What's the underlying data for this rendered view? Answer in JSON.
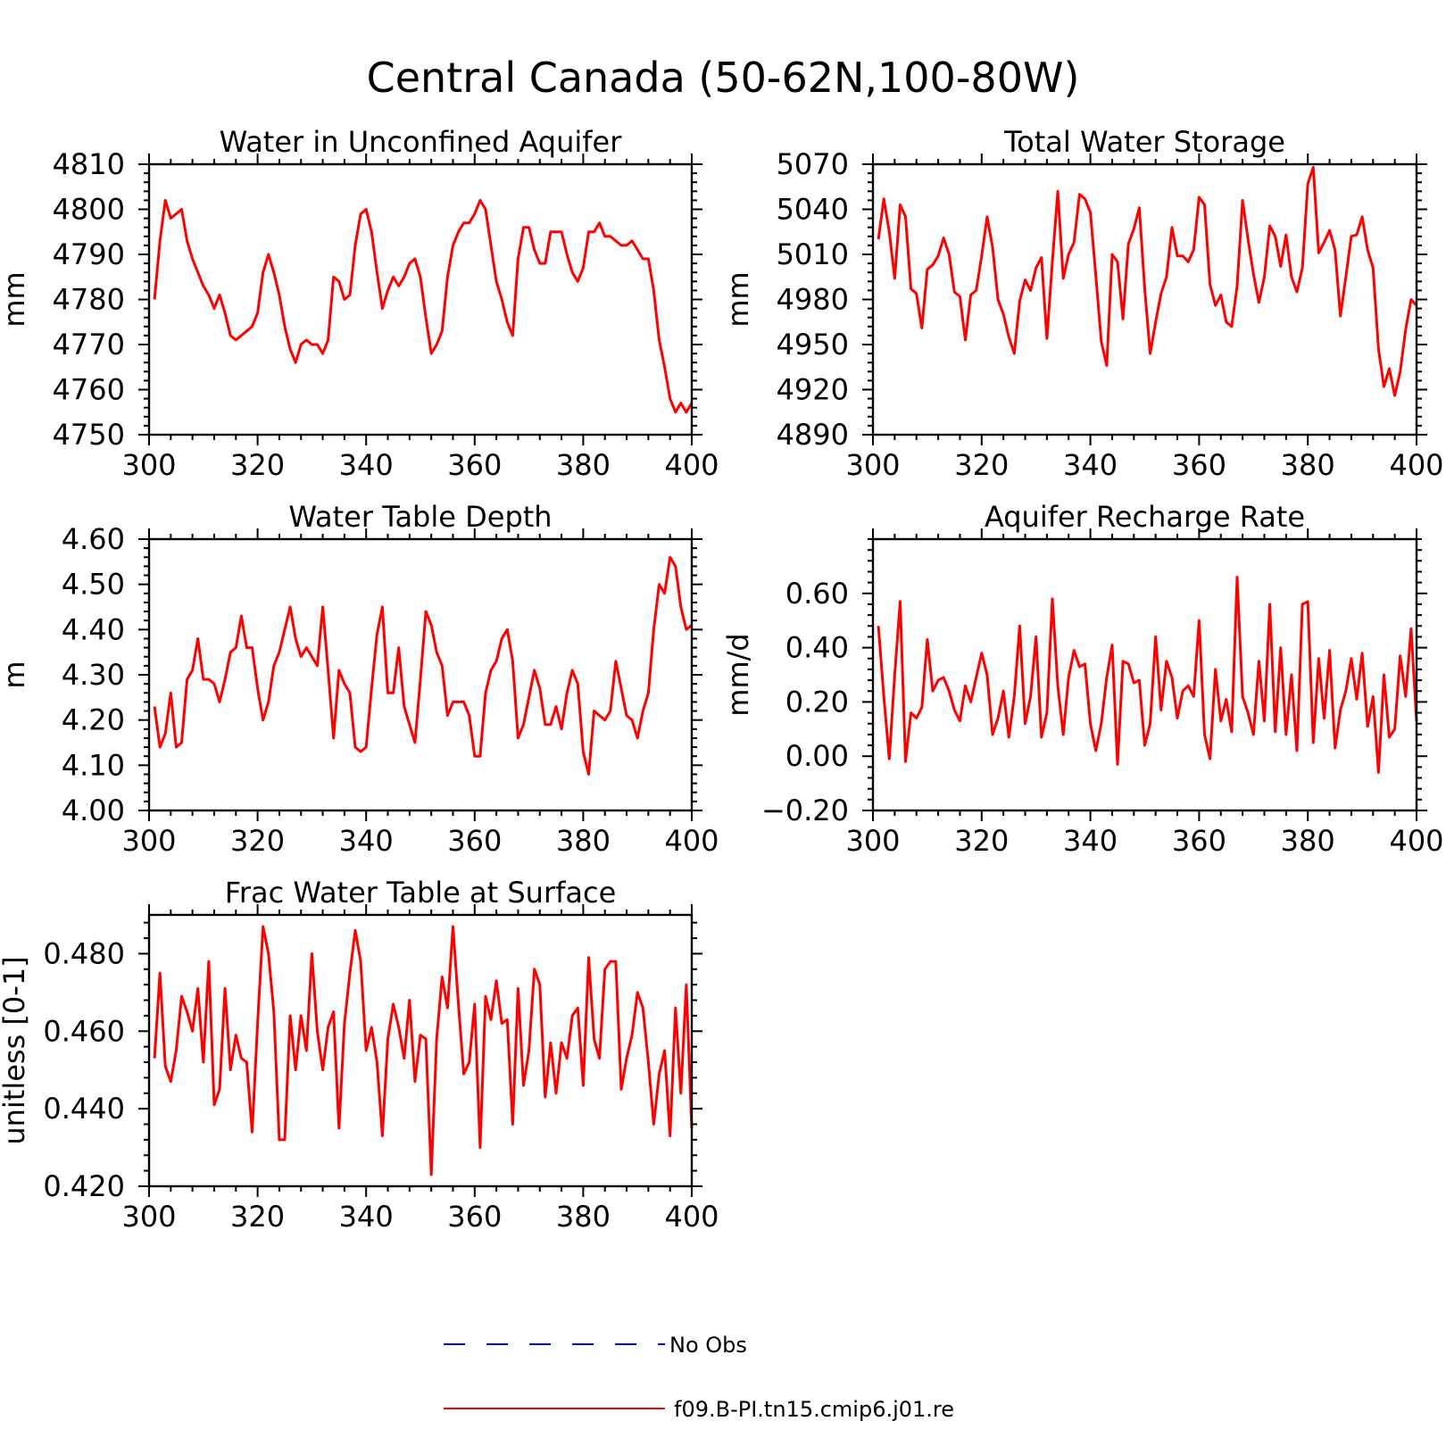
{
  "figure_title": "Central Canada (50-62N,100-80W)",
  "legend": {
    "items": [
      {
        "label": "No Obs",
        "color": "#0000ff",
        "style": "dashed"
      },
      {
        "label": "f09.B-PI.tn15.cmip6.j01.re",
        "color": "#ff0000",
        "style": "solid"
      }
    ]
  },
  "colors": {
    "series": "#ff0000",
    "no_obs": "#0000ff",
    "axes": "#000000"
  },
  "chart_data": [
    {
      "type": "line",
      "title": "Water in Unconfined Aquifer",
      "ylabel": "mm",
      "xlim": [
        300,
        400
      ],
      "ylim": [
        4750,
        4810
      ],
      "xticks": [
        300,
        320,
        340,
        360,
        380,
        400
      ],
      "xtick_labels": [
        "300",
        "320",
        "340",
        "360",
        "380",
        "400"
      ],
      "yticks": [
        4750,
        4760,
        4770,
        4780,
        4790,
        4800,
        4810
      ],
      "ytick_labels": [
        "4750",
        "4760",
        "4770",
        "4780",
        "4790",
        "4800",
        "4810"
      ],
      "x_start": 301,
      "series": [
        {
          "values": [
            4780,
            4793,
            4802,
            4798,
            4799,
            4800,
            4793,
            4789,
            4786,
            4783,
            4781,
            4778,
            4781,
            4777,
            4772,
            4771,
            4772,
            4773,
            4774,
            4777,
            4786,
            4790,
            4786,
            4781,
            4774,
            4769,
            4766,
            4770,
            4771,
            4770,
            4770,
            4768,
            4771,
            4785,
            4784,
            4780,
            4781,
            4792,
            4799,
            4800,
            4795,
            4786,
            4778,
            4782,
            4785,
            4783,
            4785,
            4788,
            4789,
            4785,
            4776,
            4768,
            4770,
            4773,
            4785,
            4792,
            4795,
            4797,
            4797,
            4799,
            4802,
            4800,
            4792,
            4784,
            4780,
            4775,
            4772,
            4789,
            4796,
            4796,
            4791,
            4788,
            4788,
            4795,
            4795,
            4795,
            4790,
            4786,
            4784,
            4787,
            4795,
            4795,
            4797,
            4794,
            4794,
            4793,
            4792,
            4792,
            4793,
            4791,
            4789,
            4789,
            4782,
            4771,
            4765,
            4758,
            4755,
            4757,
            4755,
            4757
          ]
        }
      ]
    },
    {
      "type": "line",
      "title": "Total Water Storage",
      "ylabel": "mm",
      "xlim": [
        300,
        400
      ],
      "ylim": [
        4890,
        5070
      ],
      "xticks": [
        300,
        320,
        340,
        360,
        380,
        400
      ],
      "xtick_labels": [
        "300",
        "320",
        "340",
        "360",
        "380",
        "400"
      ],
      "yticks": [
        4890,
        4920,
        4950,
        4980,
        5010,
        5040,
        5070
      ],
      "ytick_labels": [
        "4890",
        "4920",
        "4950",
        "4980",
        "5010",
        "5040",
        "5070"
      ],
      "x_start": 301,
      "series": [
        {
          "values": [
            5020,
            5047,
            5025,
            4994,
            5043,
            5035,
            4987,
            4984,
            4961,
            5000,
            5003,
            5009,
            5021,
            5010,
            4985,
            4982,
            4953,
            4983,
            4986,
            5009,
            5035,
            5015,
            4980,
            4970,
            4955,
            4944,
            4979,
            4993,
            4986,
            5001,
            5008,
            4954,
            5005,
            5052,
            4994,
            5010,
            5018,
            5050,
            5047,
            5038,
            4996,
            4952,
            4936,
            5010,
            5005,
            4967,
            5017,
            5027,
            5041,
            4987,
            4944,
            4965,
            4984,
            4995,
            5028,
            5009,
            5009,
            5005,
            5013,
            5048,
            5043,
            4990,
            4976,
            4983,
            4965,
            4962,
            4989,
            5046,
            5020,
            4997,
            4978,
            4995,
            5029,
            5022,
            5002,
            5023,
            4995,
            4985,
            5001,
            5057,
            5068,
            5011,
            5018,
            5026,
            5013,
            4969,
            4995,
            5022,
            5023,
            5035,
            5013,
            5001,
            4947,
            4922,
            4934,
            4916,
            4932,
            4960,
            4980,
            4976
          ]
        }
      ]
    },
    {
      "type": "line",
      "title": "Water Table Depth",
      "ylabel": "m",
      "xlim": [
        300,
        400
      ],
      "ylim": [
        4.0,
        4.6
      ],
      "xticks": [
        300,
        320,
        340,
        360,
        380,
        400
      ],
      "xtick_labels": [
        "300",
        "320",
        "340",
        "360",
        "380",
        "400"
      ],
      "yticks": [
        4.0,
        4.1,
        4.2,
        4.3,
        4.4,
        4.5,
        4.6
      ],
      "ytick_labels": [
        "4.00",
        "4.10",
        "4.20",
        "4.30",
        "4.40",
        "4.50",
        "4.60"
      ],
      "x_start": 301,
      "series": [
        {
          "values": [
            4.23,
            4.14,
            4.17,
            4.26,
            4.14,
            4.15,
            4.29,
            4.31,
            4.38,
            4.29,
            4.29,
            4.28,
            4.24,
            4.29,
            4.35,
            4.36,
            4.43,
            4.36,
            4.36,
            4.27,
            4.2,
            4.24,
            4.32,
            4.35,
            4.4,
            4.45,
            4.38,
            4.34,
            4.36,
            4.34,
            4.32,
            4.45,
            4.31,
            4.16,
            4.31,
            4.28,
            4.26,
            4.14,
            4.13,
            4.14,
            4.27,
            4.39,
            4.45,
            4.26,
            4.26,
            4.36,
            4.23,
            4.19,
            4.15,
            4.29,
            4.44,
            4.41,
            4.35,
            4.32,
            4.21,
            4.24,
            4.24,
            4.24,
            4.21,
            4.12,
            4.12,
            4.26,
            4.31,
            4.33,
            4.38,
            4.4,
            4.33,
            4.16,
            4.19,
            4.25,
            4.31,
            4.27,
            4.19,
            4.19,
            4.23,
            4.18,
            4.26,
            4.31,
            4.28,
            4.13,
            4.08,
            4.22,
            4.21,
            4.2,
            4.22,
            4.33,
            4.27,
            4.21,
            4.2,
            4.16,
            4.22,
            4.26,
            4.4,
            4.5,
            4.48,
            4.56,
            4.54,
            4.45,
            4.4,
            4.41
          ]
        }
      ]
    },
    {
      "type": "line",
      "title": "Aquifer Recharge Rate",
      "ylabel": "mm/d",
      "xlim": [
        300,
        400
      ],
      "ylim": [
        -0.2,
        0.8
      ],
      "xticks": [
        300,
        320,
        340,
        360,
        380,
        400
      ],
      "xtick_labels": [
        "300",
        "320",
        "340",
        "360",
        "380",
        "400"
      ],
      "yticks": [
        -0.2,
        0.0,
        0.2,
        0.4,
        0.6
      ],
      "ytick_labels": [
        "-0.20",
        "0.00",
        "0.20",
        "0.40",
        "0.60"
      ],
      "x_start": 301,
      "series": [
        {
          "values": [
            0.48,
            0.22,
            -0.01,
            0.3,
            0.57,
            -0.02,
            0.16,
            0.14,
            0.18,
            0.43,
            0.24,
            0.28,
            0.29,
            0.24,
            0.17,
            0.13,
            0.26,
            0.2,
            0.29,
            0.38,
            0.3,
            0.08,
            0.14,
            0.24,
            0.07,
            0.22,
            0.48,
            0.12,
            0.22,
            0.44,
            0.07,
            0.16,
            0.58,
            0.26,
            0.08,
            0.29,
            0.39,
            0.33,
            0.34,
            0.12,
            0.02,
            0.12,
            0.29,
            0.41,
            -0.03,
            0.35,
            0.34,
            0.27,
            0.28,
            0.04,
            0.12,
            0.44,
            0.17,
            0.35,
            0.29,
            0.14,
            0.24,
            0.26,
            0.22,
            0.5,
            0.08,
            -0.01,
            0.32,
            0.13,
            0.21,
            0.09,
            0.66,
            0.22,
            0.16,
            0.08,
            0.35,
            0.13,
            0.56,
            0.09,
            0.4,
            0.08,
            0.3,
            0.02,
            0.56,
            0.57,
            0.05,
            0.36,
            0.14,
            0.39,
            0.03,
            0.17,
            0.24,
            0.36,
            0.21,
            0.38,
            0.11,
            0.22,
            -0.06,
            0.3,
            0.07,
            0.1,
            0.37,
            0.22,
            0.47,
            0.13
          ]
        }
      ]
    },
    {
      "type": "line",
      "title": "Frac Water Table at Surface",
      "ylabel": "unitless [0-1]",
      "xlim": [
        300,
        400
      ],
      "ylim": [
        0.42,
        0.49
      ],
      "xticks": [
        300,
        320,
        340,
        360,
        380,
        400
      ],
      "xtick_labels": [
        "300",
        "320",
        "340",
        "360",
        "380",
        "400"
      ],
      "yticks": [
        0.42,
        0.44,
        0.46,
        0.48
      ],
      "ytick_labels": [
        "0.420",
        "0.440",
        "0.460",
        "0.480"
      ],
      "x_start": 301,
      "series": [
        {
          "values": [
            0.453,
            0.475,
            0.451,
            0.447,
            0.455,
            0.469,
            0.465,
            0.46,
            0.471,
            0.452,
            0.478,
            0.441,
            0.445,
            0.471,
            0.45,
            0.459,
            0.453,
            0.452,
            0.434,
            0.462,
            0.487,
            0.48,
            0.465,
            0.432,
            0.432,
            0.464,
            0.45,
            0.464,
            0.455,
            0.48,
            0.46,
            0.45,
            0.461,
            0.465,
            0.435,
            0.462,
            0.475,
            0.486,
            0.478,
            0.455,
            0.461,
            0.452,
            0.433,
            0.458,
            0.467,
            0.461,
            0.453,
            0.468,
            0.447,
            0.459,
            0.458,
            0.423,
            0.458,
            0.474,
            0.466,
            0.487,
            0.467,
            0.449,
            0.452,
            0.467,
            0.43,
            0.469,
            0.463,
            0.473,
            0.462,
            0.463,
            0.436,
            0.471,
            0.446,
            0.455,
            0.476,
            0.472,
            0.443,
            0.457,
            0.444,
            0.457,
            0.453,
            0.464,
            0.466,
            0.446,
            0.479,
            0.458,
            0.453,
            0.476,
            0.478,
            0.478,
            0.445,
            0.453,
            0.459,
            0.47,
            0.466,
            0.452,
            0.436,
            0.449,
            0.455,
            0.433,
            0.466,
            0.444,
            0.472,
            0.435
          ]
        }
      ]
    }
  ]
}
